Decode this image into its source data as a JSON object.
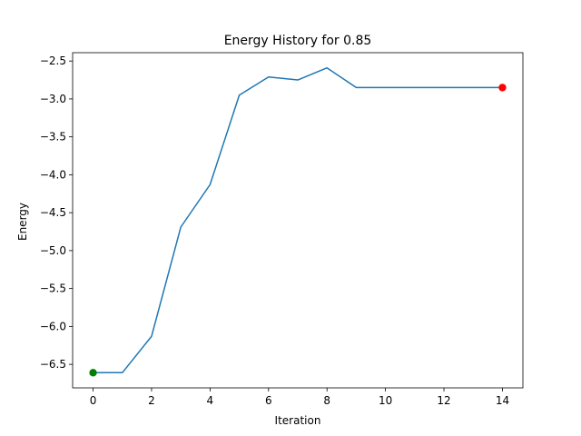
{
  "chart_data": {
    "type": "line",
    "title": "Energy History for 0.85",
    "xlabel": "Iteration",
    "ylabel": "Energy",
    "xlim": [
      -0.7,
      14.7
    ],
    "ylim": [
      -6.81,
      -2.39
    ],
    "xticks": [
      0,
      2,
      4,
      6,
      8,
      10,
      12,
      14
    ],
    "yticks": [
      -6.5,
      -6.0,
      -5.5,
      -5.0,
      -4.5,
      -4.0,
      -3.5,
      -3.0,
      -2.5
    ],
    "xtick_labels": [
      "0",
      "2",
      "4",
      "6",
      "8",
      "10",
      "12",
      "14"
    ],
    "ytick_labels": [
      "−6.5",
      "−6.0",
      "−5.5",
      "−5.0",
      "−4.5",
      "−4.0",
      "−3.5",
      "−3.0",
      "−2.5"
    ],
    "grid": false,
    "series": [
      {
        "color": "#1f77b4",
        "x": [
          0,
          1,
          2,
          3,
          4,
          5,
          6,
          7,
          8,
          9,
          10,
          11,
          12,
          13,
          14
        ],
        "values": [
          -6.61,
          -6.61,
          -6.13,
          -4.69,
          -4.13,
          -2.95,
          -2.71,
          -2.75,
          -2.59,
          -2.85,
          -2.85,
          -2.85,
          -2.85,
          -2.85,
          -2.85
        ]
      }
    ],
    "markers": [
      {
        "label": "start",
        "x": 0,
        "y": -6.61,
        "color": "#008000"
      },
      {
        "label": "end",
        "x": 14,
        "y": -2.85,
        "color": "#ff0000"
      }
    ]
  }
}
